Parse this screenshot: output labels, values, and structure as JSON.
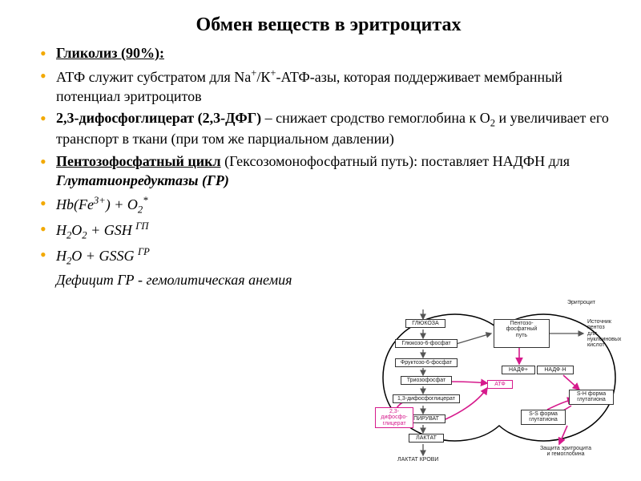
{
  "title": "Обмен веществ в эритроцитах",
  "bullets": {
    "b1_head": "Гликолиз (90%):",
    "b2_html": "АТФ служит субстратом для Na<span class='sup'>+</span>/К<span class='sup'>+</span>-АТФ-азы, которая поддерживает мембранный потенциал эритроцитов",
    "b3_html": "<b>2,3-дифосфоглицерат (2,3-ДФГ)</b> – снижает сродство гемоглобина к O<span class='subs'>2</span> и увеличивает его транспорт в ткани (при том же парциальном давлении)",
    "b4_html": "<span class='sub1'>Пентозофосфатный цикл</span> (Гексозомонофосфатный путь): поставляет НАДФН для <span class='sub2'>Глутатионредуктазы (ГР)</span>",
    "b5_html": "<span class='ital'>Hb(Fe<span class='sup'>3+</span>) + O<span class='subs'>2</span><span class='sup'>*</span></span>",
    "b6_html": "<span class='ital'>H<span class='subs'>2</span>O<span class='subs'>2</span> + GSH <span class='sup'>ГП</span></span>",
    "b7_html": "<span class='ital'>H<span class='subs'>2</span>O + GSSG <span class='sup'>ГР</span></span>"
  },
  "footer_html": "<span class='ital'>Дефицит ГР - гемолитическая анемия</span>",
  "diagram": {
    "cell_label": "Эритроцит",
    "glucose": "ГЛЮКОЗА",
    "g6p": "Глюкозо-6-фосфат",
    "f6p": "Фруктозо-6-фосфат",
    "triose": "Триозофосфат",
    "bpg13": "1,3-дифосфоглицерат",
    "dpg23": "2,3-дифосфо-\nглицерат",
    "pyruvate": "ПИРУВАТ",
    "lactate": "ЛАКТАТ",
    "lactate_blood": "ЛАКТАТ КРОВИ",
    "pentose": "Пентозо-\nфосфатный\nпуть",
    "nadp": "НАДФ+",
    "nadph": "НАДФ·Н",
    "atp": "АТФ",
    "gsh": "S-H форма\nглутатиона",
    "gssg": "S-S форма\nглутатиона",
    "pentose_out": "Источник\nпентоз\nдля\nнуклеиновых\nкислот",
    "protect": "Защита эритроцита\nи гемоглобина",
    "colors": {
      "accent": "#d61a8c",
      "line": "#555555",
      "box_border": "#333333",
      "cell_outline": "#000000",
      "bg": "#ffffff"
    }
  }
}
